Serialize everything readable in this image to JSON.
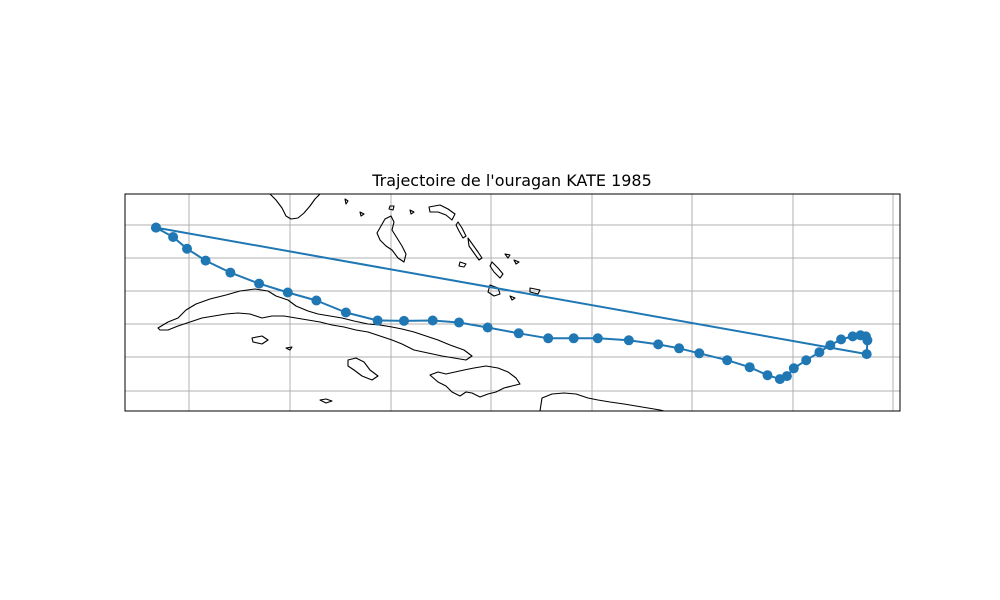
{
  "title": "Trajectoire de l'ouragan KATE 1985",
  "chart_data": {
    "type": "map-track",
    "title": "Trajectoire de l'ouragan KATE 1985",
    "grid": true,
    "line_color": "#1f77b4",
    "coast_color": "#000000",
    "track": [
      {
        "x": 0.04,
        "y": 0.155
      },
      {
        "x": 0.062,
        "y": 0.198
      },
      {
        "x": 0.08,
        "y": 0.252
      },
      {
        "x": 0.104,
        "y": 0.307
      },
      {
        "x": 0.136,
        "y": 0.362
      },
      {
        "x": 0.173,
        "y": 0.413
      },
      {
        "x": 0.21,
        "y": 0.454
      },
      {
        "x": 0.247,
        "y": 0.491
      },
      {
        "x": 0.285,
        "y": 0.546
      },
      {
        "x": 0.326,
        "y": 0.583
      },
      {
        "x": 0.36,
        "y": 0.585
      },
      {
        "x": 0.397,
        "y": 0.583
      },
      {
        "x": 0.431,
        "y": 0.592
      },
      {
        "x": 0.468,
        "y": 0.615
      },
      {
        "x": 0.508,
        "y": 0.642
      },
      {
        "x": 0.546,
        "y": 0.665
      },
      {
        "x": 0.579,
        "y": 0.665
      },
      {
        "x": 0.61,
        "y": 0.665
      },
      {
        "x": 0.65,
        "y": 0.674
      },
      {
        "x": 0.688,
        "y": 0.693
      },
      {
        "x": 0.715,
        "y": 0.711
      },
      {
        "x": 0.741,
        "y": 0.734
      },
      {
        "x": 0.777,
        "y": 0.766
      },
      {
        "x": 0.806,
        "y": 0.798
      },
      {
        "x": 0.829,
        "y": 0.835
      },
      {
        "x": 0.845,
        "y": 0.853
      },
      {
        "x": 0.854,
        "y": 0.839
      },
      {
        "x": 0.863,
        "y": 0.803
      },
      {
        "x": 0.879,
        "y": 0.766
      },
      {
        "x": 0.896,
        "y": 0.729
      },
      {
        "x": 0.91,
        "y": 0.697
      },
      {
        "x": 0.924,
        "y": 0.67
      },
      {
        "x": 0.939,
        "y": 0.656
      },
      {
        "x": 0.949,
        "y": 0.651
      },
      {
        "x": 0.956,
        "y": 0.656
      },
      {
        "x": 0.958,
        "y": 0.674
      },
      {
        "x": 0.957,
        "y": 0.738
      },
      {
        "x": 0.04,
        "y": 0.155
      }
    ]
  }
}
